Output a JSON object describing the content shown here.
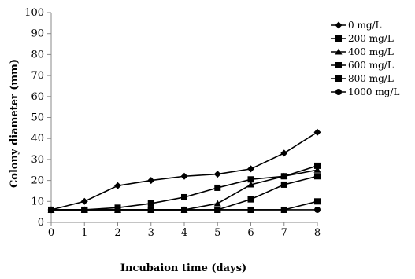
{
  "chart_data": {
    "type": "line",
    "title": "",
    "xlabel": "Incubaion time (days)",
    "ylabel": "Colony diameter (mm)",
    "x": [
      0,
      1,
      2,
      3,
      4,
      5,
      6,
      7,
      8
    ],
    "xlim": [
      0,
      8
    ],
    "ylim": [
      0,
      100
    ],
    "xticks": [
      "0",
      "1",
      "2",
      "3",
      "4",
      "5",
      "6",
      "7",
      "8"
    ],
    "yticks": [
      "0",
      "10",
      "20",
      "30",
      "40",
      "50",
      "60",
      "70",
      "80",
      "90",
      "100"
    ],
    "grid": false,
    "legend_position": "right",
    "series": [
      {
        "name": "0 mg/L",
        "marker": "diamond",
        "values": [
          6,
          10,
          17.5,
          20,
          22,
          23,
          25.5,
          33,
          43
        ]
      },
      {
        "name": "200 mg/L",
        "marker": "square",
        "values": [
          6,
          6,
          7,
          9,
          12,
          16.5,
          20.5,
          22,
          27
        ]
      },
      {
        "name": "400 mg/L",
        "marker": "triangle",
        "values": [
          6,
          6,
          6,
          6,
          6,
          9,
          18,
          22,
          25
        ]
      },
      {
        "name": "600 mg/L",
        "marker": "square",
        "values": [
          6,
          6,
          6,
          6,
          6,
          6,
          11,
          18,
          22
        ]
      },
      {
        "name": "800 mg/L",
        "marker": "square",
        "values": [
          6,
          6,
          6,
          6,
          6,
          6,
          6,
          6,
          10
        ]
      },
      {
        "name": "1000 mg/L",
        "marker": "circle",
        "values": [
          6,
          6,
          6,
          6,
          6,
          6,
          6,
          6,
          6
        ]
      }
    ]
  }
}
